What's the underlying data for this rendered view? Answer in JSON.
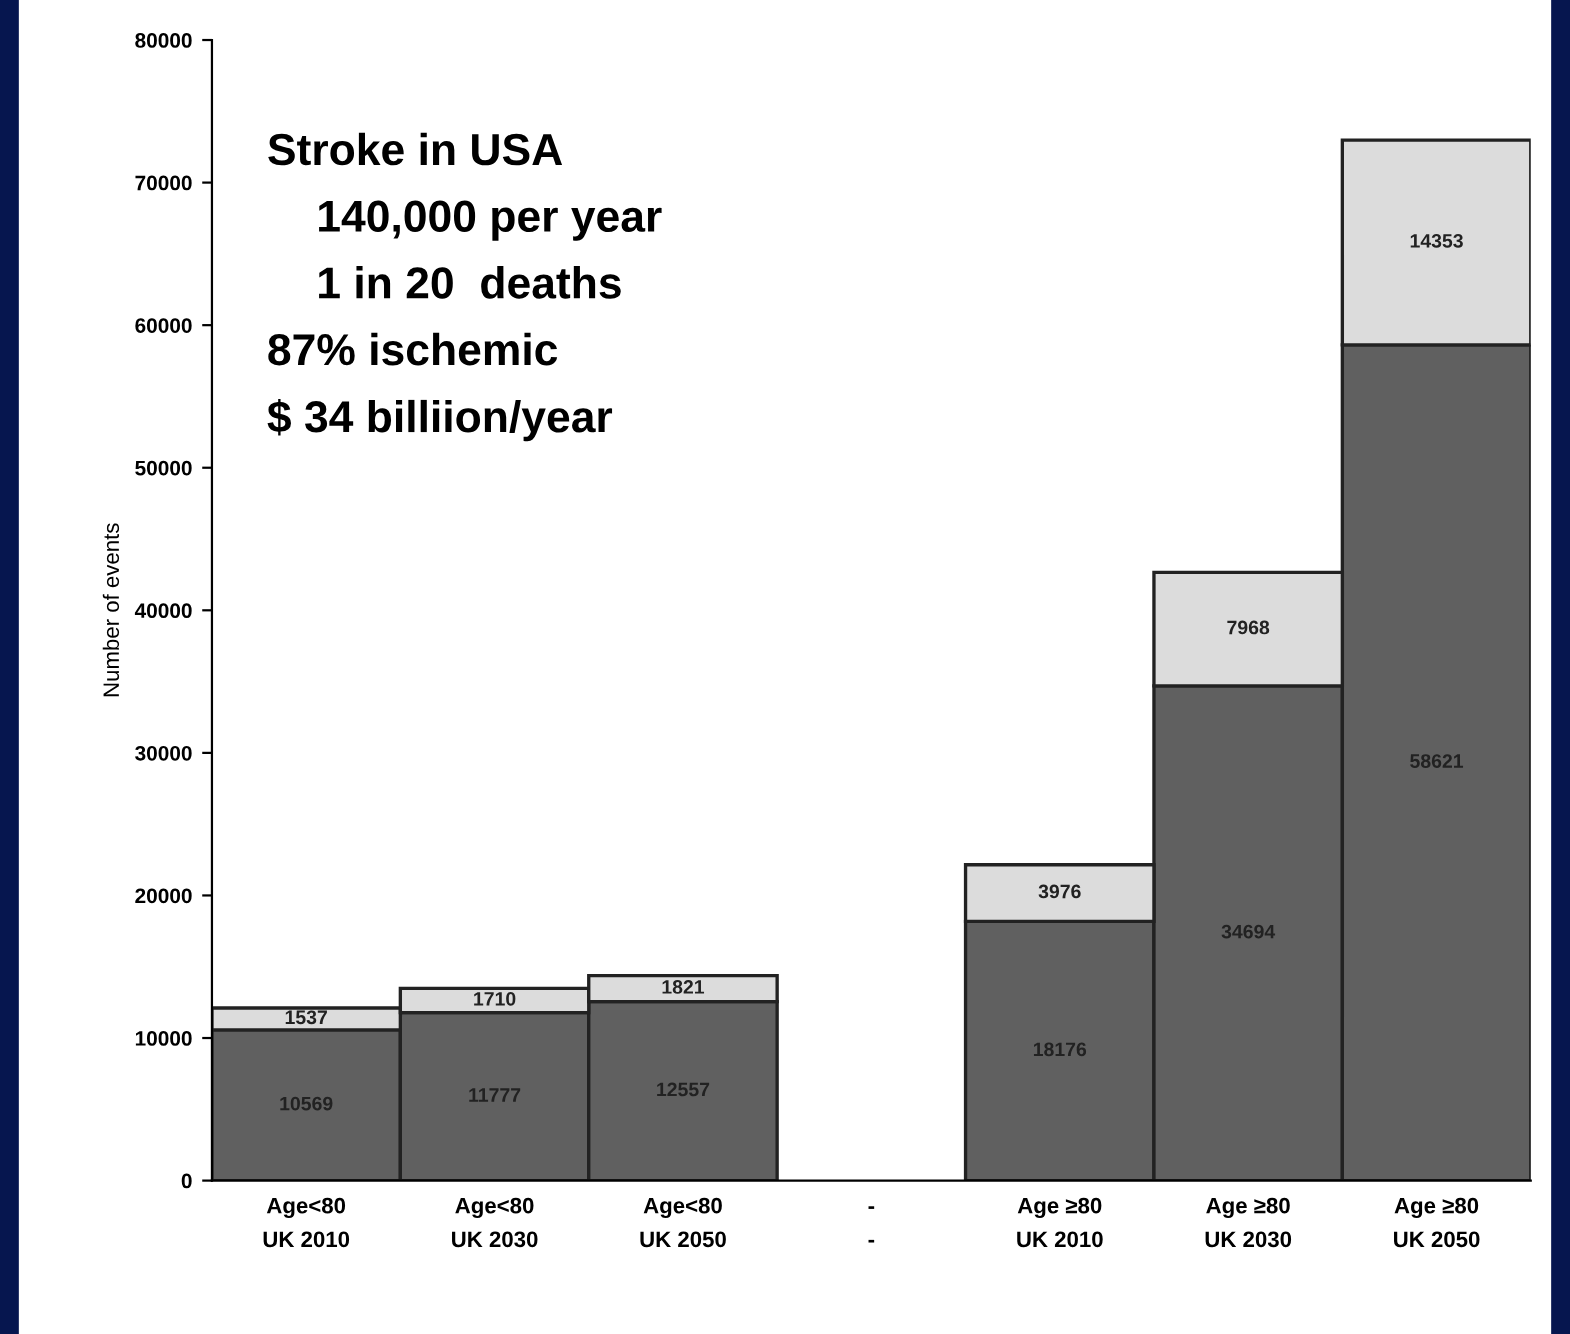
{
  "chart_data": {
    "type": "bar",
    "stacked": true,
    "ylabel": "Number of events",
    "categories": [
      "Age<80\nUK 2010",
      "Age<80\nUK 2030",
      "Age<80\nUK 2050",
      "-\n-",
      "Age ≥80\nUK 2010",
      "Age ≥80\nUK 2030",
      "Age ≥80\nUK 2050"
    ],
    "series": [
      {
        "color": "#606060",
        "values": [
          10569,
          11777,
          12557,
          null,
          18176,
          34694,
          58621
        ]
      },
      {
        "color": "#dcdcdc",
        "values": [
          1537,
          1710,
          1821,
          null,
          3976,
          7968,
          14353
        ]
      }
    ],
    "data_labels": true,
    "ylim": [
      0,
      80000
    ],
    "yticks": [
      0,
      10000,
      20000,
      30000,
      40000,
      50000,
      60000,
      70000,
      80000
    ],
    "grid": false,
    "legend": false,
    "annotations": [
      "Stroke in USA",
      "    140,000 per year",
      "    1 in 20  deaths",
      "87% ischemic",
      "$ 34 billiion/year"
    ]
  }
}
